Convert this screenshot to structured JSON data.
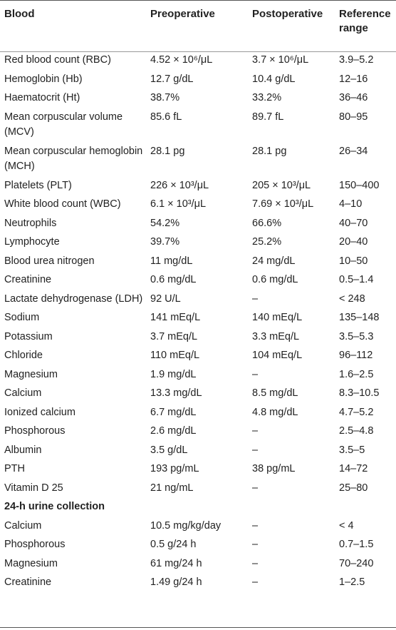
{
  "header": {
    "blood": "Blood",
    "preoperative": "Preoperative",
    "postoperative": "Postoperative",
    "reference_range_line1": "Reference",
    "reference_range_line2": "range"
  },
  "rows": [
    {
      "test": "Red blood count (RBC)",
      "pre": "4.52 × 10⁶/μL",
      "post": "3.7 × 10⁶/μL",
      "ref": "3.9–5.2"
    },
    {
      "test": "Hemoglobin (Hb)",
      "pre": "12.7 g/dL",
      "post": "10.4 g/dL",
      "ref": "12–16"
    },
    {
      "test": "Haematocrit (Ht)",
      "pre": "38.7%",
      "post": "33.2%",
      "ref": "36–46"
    },
    {
      "test": "Mean corpuscular volume (MCV)",
      "pre": "85.6 fL",
      "post": "89.7 fL",
      "ref": "80–95"
    },
    {
      "test": "Mean corpuscular hemoglobin (MCH)",
      "pre": "28.1 pg",
      "post": "28.1 pg",
      "ref": "26–34"
    },
    {
      "test": "Platelets (PLT)",
      "pre": "226 × 10³/μL",
      "post": "205 × 10³/μL",
      "ref": "150–400"
    },
    {
      "test": "White blood count (WBC)",
      "pre": "6.1 × 10³/μL",
      "post": "7.69 × 10³/μL",
      "ref": "4–10"
    },
    {
      "test": "Neutrophils",
      "pre": "54.2%",
      "post": "66.6%",
      "ref": "40–70"
    },
    {
      "test": "Lymphocyte",
      "pre": "39.7%",
      "post": "25.2%",
      "ref": "20–40"
    },
    {
      "test": "Blood urea nitrogen",
      "pre": "11 mg/dL",
      "post": "24 mg/dL",
      "ref": "10–50"
    },
    {
      "test": "Creatinine",
      "pre": "0.6 mg/dL",
      "post": "0.6 mg/dL",
      "ref": "0.5–1.4"
    },
    {
      "test": "Lactate dehydrogenase (LDH)",
      "pre": "92 U/L",
      "post": "–",
      "ref": "< 248"
    },
    {
      "test": "Sodium",
      "pre": "141 mEq/L",
      "post": "140 mEq/L",
      "ref": "135–148"
    },
    {
      "test": "Potassium",
      "pre": "3.7 mEq/L",
      "post": "3.3 mEq/L",
      "ref": "3.5–5.3"
    },
    {
      "test": "Chloride",
      "pre": "110 mEq/L",
      "post": "104 mEq/L",
      "ref": "96–112"
    },
    {
      "test": "Magnesium",
      "pre": "1.9 mg/dL",
      "post": "–",
      "ref": "1.6–2.5"
    },
    {
      "test": "Calcium",
      "pre": "13.3 mg/dL",
      "post": "8.5 mg/dL",
      "ref": "8.3–10.5"
    },
    {
      "test": "Ionized calcium",
      "pre": "6.7 mg/dL",
      "post": "4.8 mg/dL",
      "ref": "4.7–5.2"
    },
    {
      "test": "Phosphorous",
      "pre": "2.6 mg/dL",
      "post": "–",
      "ref": "2.5–4.8"
    },
    {
      "test": "Albumin",
      "pre": "3.5 g/dL",
      "post": "–",
      "ref": "3.5–5"
    },
    {
      "test": "PTH",
      "pre": "193 pg/mL",
      "post": "38 pg/mL",
      "ref": "14–72"
    },
    {
      "test": "Vitamin D 25",
      "pre": "21 ng/mL",
      "post": "–",
      "ref": "25–80"
    }
  ],
  "urine_section": {
    "title": "24-h urine collection",
    "rows": [
      {
        "test": "Calcium",
        "pre": "10.5 mg/kg/day",
        "post": "–",
        "ref": "< 4"
      },
      {
        "test": "Phosphorous",
        "pre": "0.5 g/24 h",
        "post": "–",
        "ref": "0.7–1.5"
      },
      {
        "test": "Magnesium",
        "pre": "61 mg/24 h",
        "post": "–",
        "ref": "70–240"
      },
      {
        "test": "Creatinine",
        "pre": "1.49 g/24 h",
        "post": "–",
        "ref": "1–2.5"
      }
    ]
  }
}
